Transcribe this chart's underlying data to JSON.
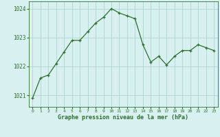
{
  "x": [
    0,
    1,
    2,
    3,
    4,
    5,
    6,
    7,
    8,
    9,
    10,
    11,
    12,
    13,
    14,
    15,
    16,
    17,
    18,
    19,
    20,
    21,
    22,
    23
  ],
  "y": [
    1020.9,
    1021.6,
    1021.7,
    1022.1,
    1022.5,
    1022.9,
    1022.9,
    1023.2,
    1023.5,
    1023.7,
    1024.0,
    1023.85,
    1023.75,
    1023.65,
    1022.75,
    1022.15,
    1022.35,
    1022.05,
    1022.35,
    1022.55,
    1022.55,
    1022.75,
    1022.65,
    1022.55
  ],
  "line_color": "#2d6e2d",
  "marker": "+",
  "marker_color": "#2d6e2d",
  "bg_color": "#d8f0f0",
  "grid_color": "#aed4d4",
  "axis_label_color": "#2d6e2d",
  "tick_label_color": "#2d6e2d",
  "ylabel_ticks": [
    1021,
    1022,
    1023,
    1024
  ],
  "xlabel": "Graphe pression niveau de la mer (hPa)",
  "xlim": [
    -0.5,
    23.5
  ],
  "ylim": [
    1020.6,
    1024.25
  ],
  "xtick_labels": [
    "0",
    "1",
    "2",
    "3",
    "4",
    "5",
    "6",
    "7",
    "8",
    "9",
    "10",
    "11",
    "12",
    "13",
    "14",
    "15",
    "16",
    "17",
    "18",
    "19",
    "20",
    "21",
    "22",
    "23"
  ]
}
